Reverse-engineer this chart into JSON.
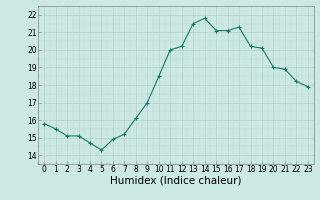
{
  "x": [
    0,
    1,
    2,
    3,
    4,
    5,
    6,
    7,
    8,
    9,
    10,
    11,
    12,
    13,
    14,
    15,
    16,
    17,
    18,
    19,
    20,
    21,
    22,
    23
  ],
  "y": [
    15.8,
    15.5,
    15.1,
    15.1,
    14.7,
    14.3,
    14.9,
    15.2,
    16.1,
    17.0,
    18.5,
    20.0,
    20.2,
    21.5,
    21.8,
    21.1,
    21.1,
    21.3,
    20.2,
    20.1,
    19.0,
    18.9,
    18.2,
    17.9
  ],
  "line_color": "#1a7a6a",
  "marker": "+",
  "markersize": 3,
  "linewidth": 0.8,
  "xlabel": "Humidex (Indice chaleur)",
  "xlim": [
    -0.5,
    23.5
  ],
  "ylim": [
    13.5,
    22.5
  ],
  "yticks": [
    14,
    15,
    16,
    17,
    18,
    19,
    20,
    21,
    22
  ],
  "xticks": [
    0,
    1,
    2,
    3,
    4,
    5,
    6,
    7,
    8,
    9,
    10,
    11,
    12,
    13,
    14,
    15,
    16,
    17,
    18,
    19,
    20,
    21,
    22,
    23
  ],
  "bg_color": "#cce8e4",
  "grid_color": "#aaccca",
  "tick_fontsize": 5.5,
  "xlabel_fontsize": 7.5
}
